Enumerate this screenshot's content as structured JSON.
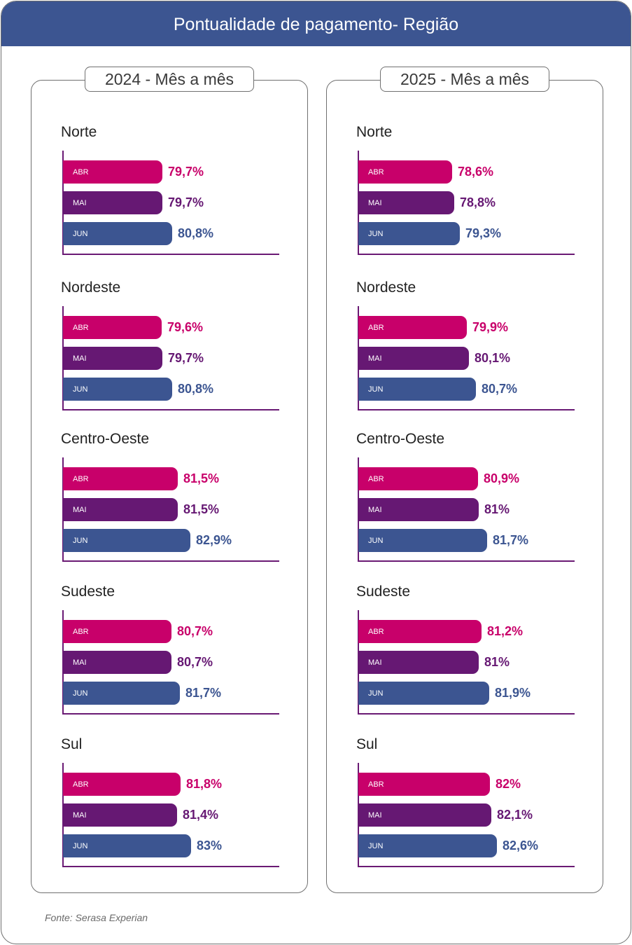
{
  "header": {
    "title": "Pontualidade de pagamento- Região"
  },
  "colors": {
    "ABR": "#c8006a",
    "MAI": "#661873",
    "JUN": "#3c5591"
  },
  "source": "Fonte: Serasa Experian",
  "chart_data": [
    {
      "type": "bar",
      "title": "2024 - Mês a mês",
      "categories": [
        "ABR",
        "MAI",
        "JUN"
      ],
      "unit": "%",
      "regions": [
        {
          "name": "Norte",
          "values": [
            79.7,
            79.7,
            80.8
          ],
          "labels": [
            "79,7%",
            "79,7%",
            "80,8%"
          ]
        },
        {
          "name": "Nordeste",
          "values": [
            79.6,
            79.7,
            80.8
          ],
          "labels": [
            "79,6%",
            "79,7%",
            "80,8%"
          ]
        },
        {
          "name": "Centro-Oeste",
          "values": [
            81.5,
            81.5,
            82.9
          ],
          "labels": [
            "81,5%",
            "81,5%",
            "82,9%"
          ]
        },
        {
          "name": "Sudeste",
          "values": [
            80.7,
            80.7,
            81.7
          ],
          "labels": [
            "80,7%",
            "80,7%",
            "81,7%"
          ]
        },
        {
          "name": "Sul",
          "values": [
            81.8,
            81.4,
            83.0
          ],
          "labels": [
            "81,8%",
            "81,4%",
            "83%"
          ]
        }
      ]
    },
    {
      "type": "bar",
      "title": "2025 - Mês a mês",
      "categories": [
        "ABR",
        "MAI",
        "JUN"
      ],
      "unit": "%",
      "regions": [
        {
          "name": "Norte",
          "values": [
            78.6,
            78.8,
            79.3
          ],
          "labels": [
            "78,6%",
            "78,8%",
            "79,3%"
          ]
        },
        {
          "name": "Nordeste",
          "values": [
            79.9,
            80.1,
            80.7
          ],
          "labels": [
            "79,9%",
            "80,1%",
            "80,7%"
          ]
        },
        {
          "name": "Centro-Oeste",
          "values": [
            80.9,
            81.0,
            81.7
          ],
          "labels": [
            "80,9%",
            "81%",
            "81,7%"
          ]
        },
        {
          "name": "Sudeste",
          "values": [
            81.2,
            81.0,
            81.9
          ],
          "labels": [
            "81,2%",
            "81%",
            "81,9%"
          ]
        },
        {
          "name": "Sul",
          "values": [
            82.0,
            82.1,
            82.6
          ],
          "labels": [
            "82%",
            "82,1%",
            "82,6%"
          ]
        }
      ]
    }
  ]
}
